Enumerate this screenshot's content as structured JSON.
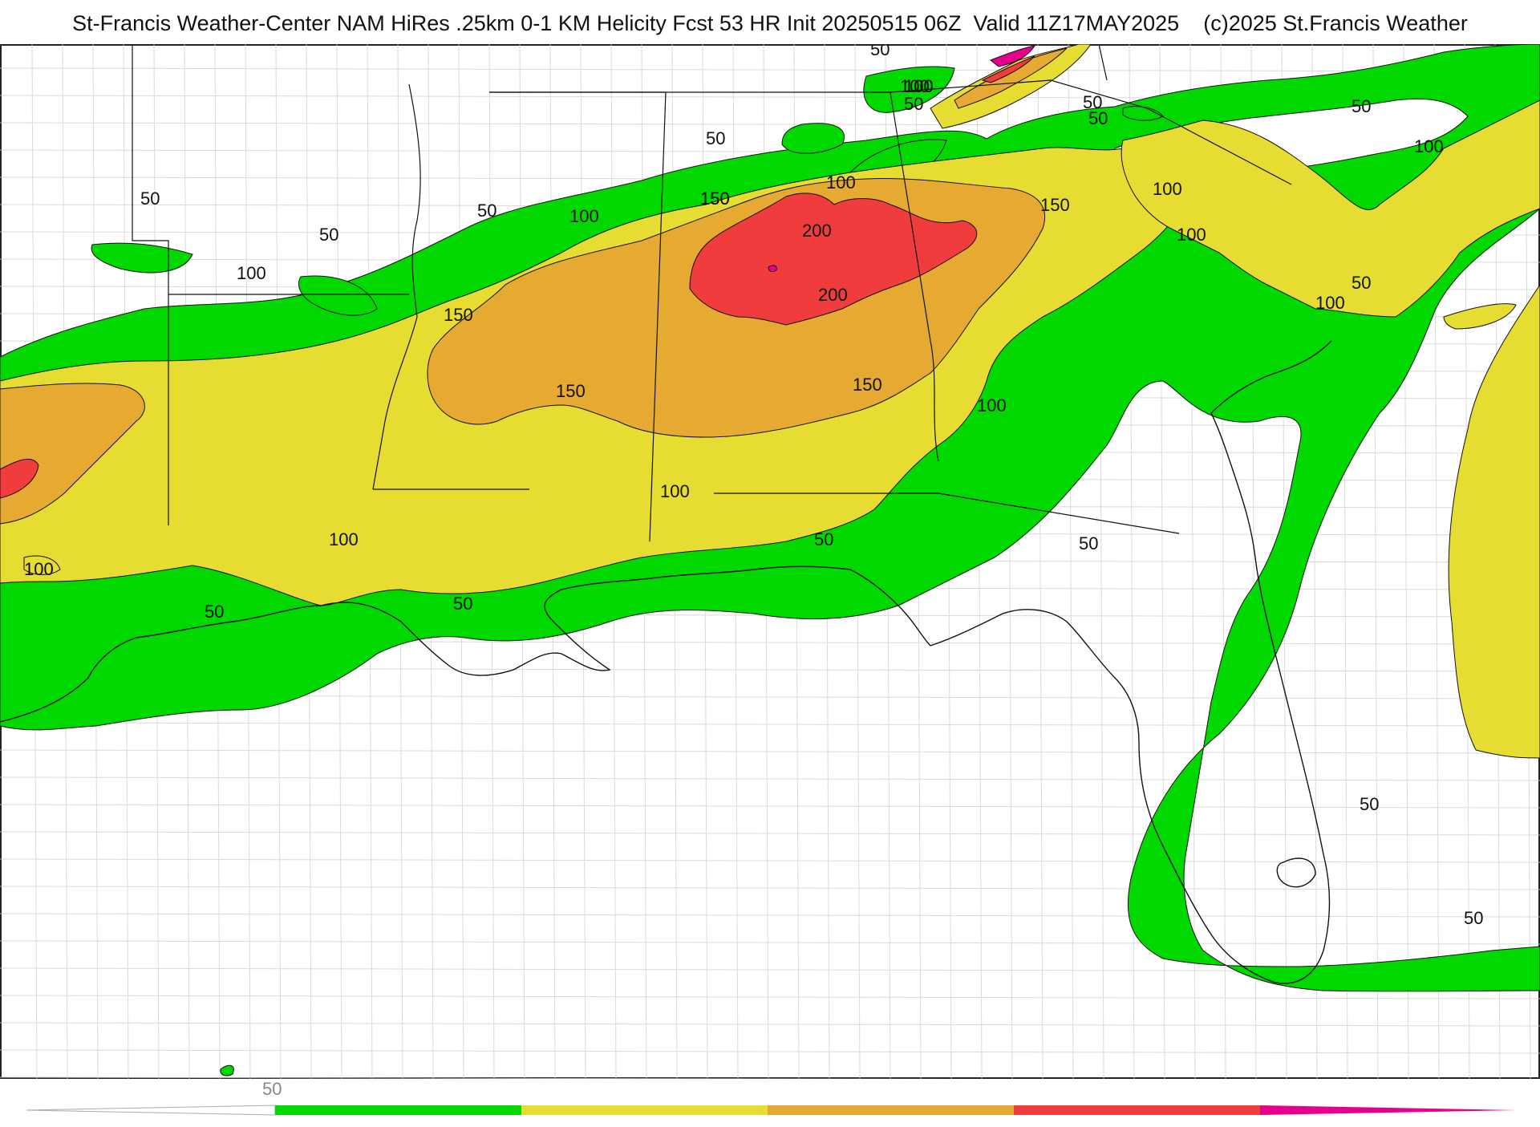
{
  "header": {
    "title": "St-Francis Weather-Center NAM HiRes .25km 0-1 KM Helicity Fcst 53 HR Init 20250515 06Z  Valid 11Z17MAY2025    (c)2025 St.Francis Weather"
  },
  "map": {
    "variable": "0-1 KM Helicity",
    "region": "US Southeast / Gulf Coast",
    "contour_labels": [
      "50",
      "50",
      "50",
      "50",
      "50",
      "50",
      "50",
      "50",
      "50",
      "50",
      "50",
      "50",
      "50",
      "50",
      "50",
      "50",
      "100",
      "100",
      "100",
      "100",
      "100",
      "100",
      "100",
      "100",
      "100",
      "100",
      "100",
      "100",
      "100",
      "100",
      "150",
      "150",
      "150",
      "150",
      "150",
      "150",
      "200",
      "200"
    ]
  },
  "colorbar": {
    "tick_label": "50",
    "colors": [
      "#ffffff",
      "#00d800",
      "#e6dc32",
      "#e6aa32",
      "#f03c3c",
      "#e6008c"
    ]
  }
}
